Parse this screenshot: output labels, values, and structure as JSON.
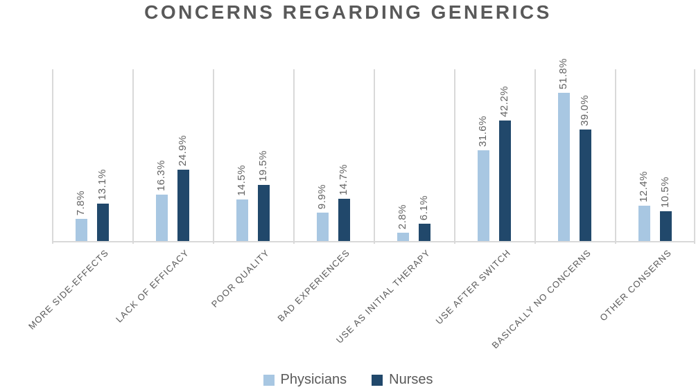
{
  "chart_data": {
    "type": "bar",
    "title": "CONCERNS REGARDING GENERICS",
    "categories": [
      "MORE SIDE-EFFECTS",
      "LACK OF EFFICACY",
      "POOR QUALITY",
      "BAD EXPERIENCES",
      "USE AS INITIAL THERAPY",
      "USE AFTER SWITCH",
      "BASICALLY NO CONCERNS",
      "OTHER CONSERNS"
    ],
    "series": [
      {
        "name": "Physicians",
        "color": "#a8c7e2",
        "values": [
          7.8,
          16.3,
          14.5,
          9.9,
          2.8,
          31.6,
          51.8,
          12.4
        ],
        "labels": [
          "7.8%",
          "16.3%",
          "14.5%",
          "9.9%",
          "2.8%",
          "31.6%",
          "51.8%",
          "12.4%"
        ]
      },
      {
        "name": "Nurses",
        "color": "#21486b",
        "values": [
          13.1,
          24.9,
          19.5,
          14.7,
          6.1,
          42.2,
          39.0,
          10.5
        ],
        "labels": [
          "13.1%",
          "24.9%",
          "19.5%",
          "14.7%",
          "6.1%",
          "42.2%",
          "39.0%",
          "10.5%"
        ]
      }
    ],
    "value_suffix": "%",
    "ylim": [
      0,
      60
    ],
    "grid": "vertical category separators only, no y-axis labels",
    "data_labels": "rotated 90 degrees above each bar",
    "category_labels": "rotated 45 degrees below axis",
    "legend_position": "bottom-center",
    "colors": {
      "grid": "#d9d9d9",
      "title_text": "#595959",
      "label_text": "#636363",
      "background": "#ffffff"
    }
  }
}
